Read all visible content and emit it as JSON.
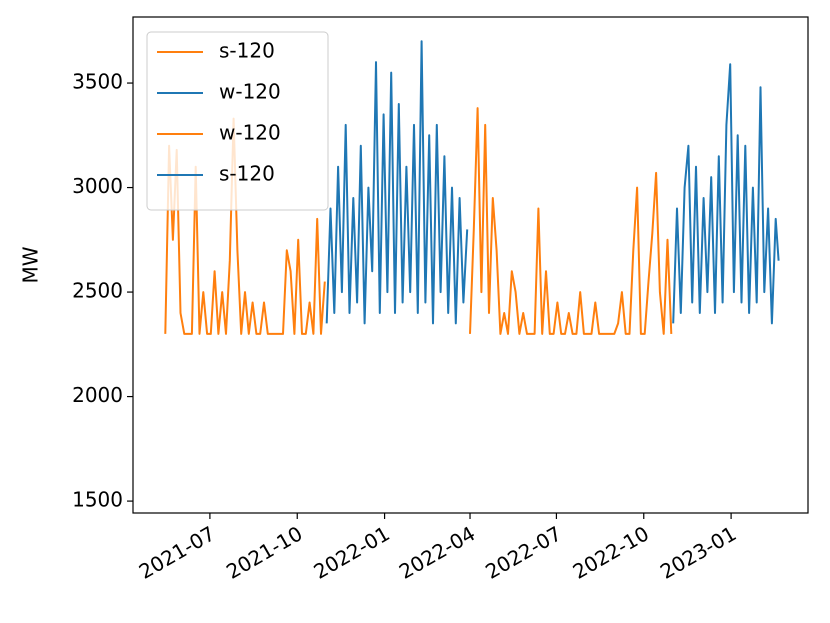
{
  "chart_data": {
    "type": "line",
    "ylabel": "MW",
    "xlim": [
      "2021-04-11",
      "2023-03-23"
    ],
    "ylim": [
      1443,
      3816
    ],
    "xticks": [
      {
        "value": "2021-07-01",
        "label": "2021-07"
      },
      {
        "value": "2021-10-01",
        "label": "2021-10"
      },
      {
        "value": "2022-01-01",
        "label": "2022-01"
      },
      {
        "value": "2022-04-01",
        "label": "2022-04"
      },
      {
        "value": "2022-07-01",
        "label": "2022-07"
      },
      {
        "value": "2022-10-01",
        "label": "2022-10"
      },
      {
        "value": "2023-01-01",
        "label": "2023-01"
      }
    ],
    "yticks": [
      1500,
      2000,
      2500,
      3000,
      3500
    ],
    "grid": false,
    "legend": "upper left",
    "series": [
      {
        "name": "s-120",
        "color": "#ff7f0e",
        "x": [
          "2021-05-15",
          "2021-05-19",
          "2021-05-23",
          "2021-05-27",
          "2021-05-31",
          "2021-06-04",
          "2021-06-08",
          "2021-06-12",
          "2021-06-16",
          "2021-06-20",
          "2021-06-24",
          "2021-06-28",
          "2021-07-02",
          "2021-07-06",
          "2021-07-10",
          "2021-07-14",
          "2021-07-18",
          "2021-07-22",
          "2021-07-26",
          "2021-07-30",
          "2021-08-03",
          "2021-08-07",
          "2021-08-11",
          "2021-08-15",
          "2021-08-19",
          "2021-08-23",
          "2021-08-27",
          "2021-08-31",
          "2021-09-04",
          "2021-09-08",
          "2021-09-12",
          "2021-09-16",
          "2021-09-20",
          "2021-09-24",
          "2021-09-28",
          "2021-10-02",
          "2021-10-06",
          "2021-10-10",
          "2021-10-14",
          "2021-10-18",
          "2021-10-22",
          "2021-10-26",
          "2021-10-30"
        ],
        "values": [
          2300,
          3200,
          2750,
          3180,
          2400,
          2300,
          2300,
          2300,
          3100,
          2300,
          2500,
          2300,
          2300,
          2600,
          2300,
          2500,
          2300,
          2650,
          3330,
          2700,
          2300,
          2500,
          2300,
          2450,
          2300,
          2300,
          2450,
          2300,
          2300,
          2300,
          2300,
          2300,
          2700,
          2600,
          2300,
          2750,
          2300,
          2300,
          2450,
          2300,
          2850,
          2300,
          2550
        ]
      },
      {
        "name": "w-120",
        "color": "#1f77b4",
        "x": [
          "2021-11-01",
          "2021-11-05",
          "2021-11-09",
          "2021-11-13",
          "2021-11-17",
          "2021-11-21",
          "2021-11-25",
          "2021-11-29",
          "2021-12-03",
          "2021-12-07",
          "2021-12-11",
          "2021-12-15",
          "2021-12-19",
          "2021-12-23",
          "2021-12-27",
          "2021-12-31",
          "2022-01-04",
          "2022-01-08",
          "2022-01-12",
          "2022-01-16",
          "2022-01-20",
          "2022-01-24",
          "2022-01-28",
          "2022-02-01",
          "2022-02-05",
          "2022-02-09",
          "2022-02-13",
          "2022-02-17",
          "2022-02-21",
          "2022-02-25",
          "2022-03-01",
          "2022-03-05",
          "2022-03-09",
          "2022-03-13",
          "2022-03-17",
          "2022-03-21",
          "2022-03-25",
          "2022-03-29"
        ],
        "values": [
          2350,
          2900,
          2400,
          3100,
          2500,
          3300,
          2400,
          2950,
          2450,
          3200,
          2350,
          3000,
          2600,
          3600,
          2400,
          3350,
          2500,
          3550,
          2400,
          3400,
          2450,
          3100,
          2500,
          3300,
          2400,
          3700,
          2450,
          3250,
          2350,
          3300,
          2500,
          3150,
          2400,
          3000,
          2350,
          2950,
          2450,
          2800
        ]
      },
      {
        "name": "w-120",
        "color": "#ff7f0e",
        "x": [
          "2022-04-01",
          "2022-04-05",
          "2022-04-09",
          "2022-04-13",
          "2022-04-17",
          "2022-04-21",
          "2022-04-25",
          "2022-04-29",
          "2022-05-03",
          "2022-05-07",
          "2022-05-11",
          "2022-05-15",
          "2022-05-19",
          "2022-05-23",
          "2022-05-27",
          "2022-05-31",
          "2022-06-04",
          "2022-06-08",
          "2022-06-12",
          "2022-06-16",
          "2022-06-20",
          "2022-06-24",
          "2022-06-28",
          "2022-07-02",
          "2022-07-06",
          "2022-07-10",
          "2022-07-14",
          "2022-07-18",
          "2022-07-22",
          "2022-07-26",
          "2022-07-30",
          "2022-08-03",
          "2022-08-07",
          "2022-08-11",
          "2022-08-15",
          "2022-08-19",
          "2022-08-23",
          "2022-08-27",
          "2022-08-31",
          "2022-09-04",
          "2022-09-08",
          "2022-09-12",
          "2022-09-16",
          "2022-09-20",
          "2022-09-24",
          "2022-09-28",
          "2022-10-02",
          "2022-10-06",
          "2022-10-10",
          "2022-10-14",
          "2022-10-18",
          "2022-10-22",
          "2022-10-26",
          "2022-10-30"
        ],
        "values": [
          2300,
          2800,
          3380,
          2500,
          3300,
          2400,
          2950,
          2700,
          2300,
          2400,
          2300,
          2600,
          2500,
          2300,
          2400,
          2300,
          2300,
          2300,
          2900,
          2300,
          2600,
          2300,
          2300,
          2450,
          2300,
          2300,
          2400,
          2300,
          2300,
          2500,
          2300,
          2300,
          2300,
          2450,
          2300,
          2300,
          2300,
          2300,
          2300,
          2350,
          2500,
          2300,
          2300,
          2700,
          3000,
          2300,
          2300,
          2550,
          2780,
          3070,
          2500,
          2300,
          2750,
          2300
        ]
      },
      {
        "name": "s-120",
        "color": "#1f77b4",
        "x": [
          "2022-11-01",
          "2022-11-05",
          "2022-11-09",
          "2022-11-13",
          "2022-11-17",
          "2022-11-21",
          "2022-11-25",
          "2022-11-29",
          "2022-12-03",
          "2022-12-07",
          "2022-12-11",
          "2022-12-15",
          "2022-12-19",
          "2022-12-23",
          "2022-12-27",
          "2022-12-31",
          "2023-01-04",
          "2023-01-08",
          "2023-01-12",
          "2023-01-16",
          "2023-01-20",
          "2023-01-24",
          "2023-01-28",
          "2023-02-01",
          "2023-02-05",
          "2023-02-09",
          "2023-02-13",
          "2023-02-17",
          "2023-02-20"
        ],
        "values": [
          2350,
          2900,
          2400,
          3000,
          3200,
          2450,
          3100,
          2400,
          2950,
          2500,
          3050,
          2400,
          3150,
          2450,
          3300,
          3590,
          2500,
          3250,
          2450,
          3200,
          2400,
          3000,
          2450,
          3480,
          2500,
          2900,
          2350,
          2850,
          2650
        ]
      }
    ]
  }
}
